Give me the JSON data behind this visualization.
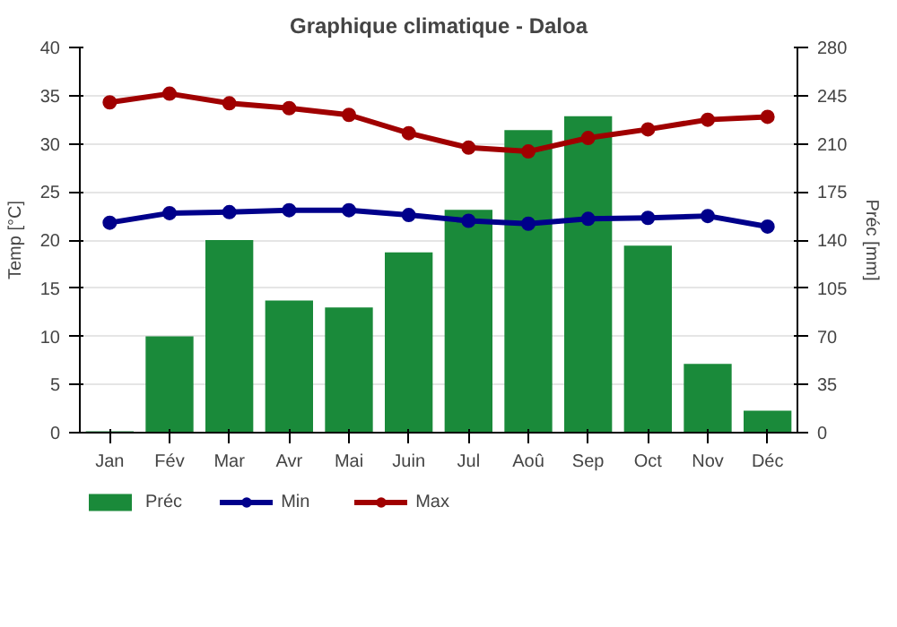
{
  "chart_data": {
    "type": "line",
    "title": "Graphique climatique - Daloa",
    "ylabel": "Temp [°C]",
    "y2label": "Préc [mm]",
    "categories": [
      "Jan",
      "Fév",
      "Mar",
      "Avr",
      "Mai",
      "Juin",
      "Jul",
      "Aoû",
      "Sep",
      "Oct",
      "Nov",
      "Déc"
    ],
    "series": [
      {
        "name": "Préc",
        "type": "bar",
        "axis": "y2",
        "color": "#1a8a3a",
        "values": [
          1,
          70,
          140,
          96,
          91,
          131,
          162,
          220,
          230,
          136,
          50,
          16
        ]
      },
      {
        "name": "Min",
        "color": "#00008b",
        "values": [
          21.8,
          22.8,
          22.9,
          23.1,
          23.1,
          22.6,
          22.0,
          21.7,
          22.2,
          22.3,
          22.5,
          21.4
        ]
      },
      {
        "name": "Max",
        "color": "#a00000",
        "values": [
          34.3,
          35.2,
          34.2,
          33.7,
          33.0,
          31.1,
          29.6,
          29.2,
          30.6,
          31.5,
          32.5,
          32.8
        ]
      }
    ],
    "ylim": [
      0,
      40
    ],
    "yticks": [
      0,
      5,
      10,
      15,
      20,
      25,
      30,
      35,
      40
    ],
    "y2lim": [
      0,
      280
    ],
    "y2ticks": [
      0,
      35,
      70,
      105,
      140,
      175,
      210,
      245,
      280
    ],
    "grid": "y",
    "legend": "bottom",
    "marker": "circle",
    "line_style": "solid"
  }
}
